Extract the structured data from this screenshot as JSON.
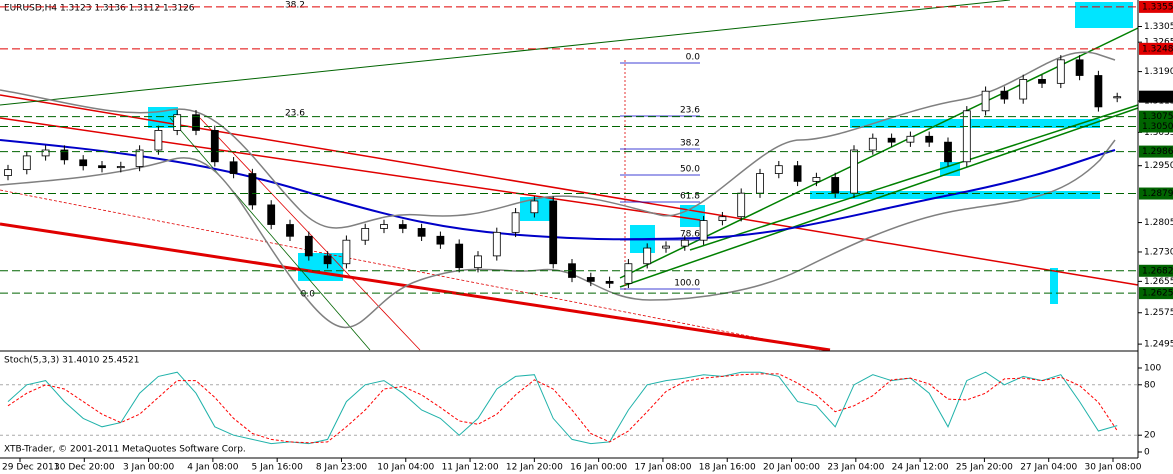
{
  "header": "EURUSD,H4  1.3123 1.3136 1.3112 1.3126",
  "footer": "XTB-Trader, © 2001-2011 MetaQuotes Software Corp.",
  "chart_data": [
    {
      "type": "candlestick",
      "open": [
        1.2925,
        1.294,
        1.2975,
        1.299,
        1.2965,
        1.295,
        1.2945,
        1.2948,
        1.299,
        1.304,
        1.308,
        1.304,
        1.296,
        1.293,
        1.285,
        1.28,
        1.277,
        1.272,
        1.27,
        1.276,
        1.279,
        1.28,
        1.279,
        1.277,
        1.275,
        1.269,
        1.272,
        1.278,
        1.283,
        1.286,
        1.27,
        1.2665,
        1.2655,
        1.265,
        1.27,
        1.274,
        1.2745,
        1.276,
        1.281,
        1.282,
        1.288,
        1.293,
        1.295,
        1.291,
        1.292,
        1.288,
        1.299,
        1.302,
        1.301,
        1.3025,
        1.301,
        1.296,
        1.309,
        1.314,
        1.312,
        1.317,
        1.316,
        1.322,
        1.318,
        1.3123
      ],
      "high": [
        1.2952,
        1.2987,
        1.3002,
        1.3002,
        1.2977,
        1.2962,
        1.296,
        1.3002,
        1.3052,
        1.3092,
        1.3092,
        1.3052,
        1.2972,
        1.2942,
        1.2862,
        1.2812,
        1.2782,
        1.2732,
        1.2772,
        1.2802,
        1.2812,
        1.2812,
        1.2802,
        1.2782,
        1.2762,
        1.2732,
        1.2792,
        1.2842,
        1.2872,
        1.2872,
        1.2712,
        1.2677,
        1.2667,
        1.2712,
        1.2752,
        1.2757,
        1.2772,
        1.2822,
        1.2832,
        1.2892,
        1.2942,
        1.2962,
        1.2962,
        1.2932,
        1.2932,
        1.3002,
        1.3032,
        1.3032,
        1.3037,
        1.3037,
        1.3022,
        1.3102,
        1.3152,
        1.3152,
        1.3182,
        1.3182,
        1.3232,
        1.3232,
        1.3192,
        1.3136
      ],
      "low": [
        1.2913,
        1.2928,
        1.2963,
        1.2953,
        1.2938,
        1.2933,
        1.2933,
        1.2936,
        1.2978,
        1.3028,
        1.3028,
        1.2948,
        1.2918,
        1.2838,
        1.2788,
        1.2758,
        1.2708,
        1.2688,
        1.2688,
        1.2748,
        1.2778,
        1.2778,
        1.2758,
        1.2738,
        1.2678,
        1.2678,
        1.2708,
        1.2768,
        1.2818,
        1.2688,
        1.2653,
        1.2643,
        1.2638,
        1.2638,
        1.2688,
        1.2728,
        1.2733,
        1.2748,
        1.2798,
        1.2808,
        1.2868,
        1.2918,
        1.2898,
        1.2898,
        1.2868,
        1.2868,
        1.2978,
        1.2998,
        1.2998,
        1.2998,
        1.2948,
        1.2948,
        1.3078,
        1.3108,
        1.3108,
        1.3148,
        1.3148,
        1.3168,
        1.3088,
        1.3112
      ],
      "close": [
        1.294,
        1.2975,
        1.299,
        1.2965,
        1.295,
        1.2945,
        1.2948,
        1.299,
        1.304,
        1.308,
        1.304,
        1.296,
        1.293,
        1.285,
        1.28,
        1.277,
        1.272,
        1.27,
        1.276,
        1.279,
        1.28,
        1.279,
        1.277,
        1.275,
        1.269,
        1.272,
        1.278,
        1.283,
        1.286,
        1.27,
        1.2665,
        1.2655,
        1.265,
        1.27,
        1.274,
        1.2745,
        1.276,
        1.281,
        1.282,
        1.288,
        1.293,
        1.295,
        1.291,
        1.292,
        1.288,
        1.299,
        1.302,
        1.301,
        1.3025,
        1.301,
        1.296,
        1.309,
        1.314,
        1.312,
        1.317,
        1.316,
        1.322,
        1.318,
        1.31,
        1.3126
      ],
      "ylim": [
        1.248,
        1.337
      ],
      "yticks": [
        1.3305,
        1.3265,
        {
          "value": 1.319,
          "label": "1.3190"
        },
        1.3115,
        1.3035,
        {
          "value": 1.295,
          "label": "1.2950"
        },
        1.2805,
        {
          "value": 1.273,
          "label": "1.2730"
        },
        1.2655,
        1.2575,
        1.2495
      ],
      "levels": [
        {
          "value": 1.3355,
          "label": "1.3355",
          "color": "#e00000",
          "line": "dashed"
        },
        {
          "value": 1.3248,
          "label": "1.3248",
          "color": "#e00000",
          "line": "dashed"
        },
        {
          "value": 1.3126,
          "label": "1.3126",
          "color": "#000000",
          "line": "none"
        },
        {
          "value": 1.3075,
          "label": "1.3075",
          "color": "#006400",
          "line": "dashed"
        },
        {
          "value": 1.305,
          "label": "1.3050",
          "color": "#006400",
          "line": "dashed"
        },
        {
          "value": 1.2986,
          "label": "1.2986",
          "color": "#006400",
          "line": "dashed"
        },
        {
          "value": 1.2879,
          "label": "1.2879",
          "color": "#006400",
          "line": "dashed"
        },
        {
          "value": 1.2682,
          "label": "1.2682",
          "color": "#006400",
          "line": "dashed"
        },
        {
          "value": 1.2625,
          "label": "1.2625",
          "color": "#006400",
          "line": "dashed"
        }
      ],
      "annotations": [
        "0.0",
        "23.6",
        "38.2",
        "50.0",
        "61.8",
        "78.6",
        "100.0",
        "38.2",
        "23.6",
        "0.0"
      ],
      "dates": [
        "29 Dec 2011",
        "30 Dec 20:00",
        "3 Jan 00:00",
        "4 Jan 08:00",
        "5 Jan 16:00",
        "8 Jan 23:00",
        "10 Jan 04:00",
        "11 Jan 12:00",
        "12 Jan 20:00",
        "16 Jan 00:00",
        "17 Jan 08:00",
        "18 Jan 16:00",
        "20 Jan 00:00",
        "23 Jan 04:00",
        "24 Jan 12:00",
        "25 Jan 20:00",
        "27 Jan 04:00",
        "30 Jan 08:00"
      ]
    },
    {
      "type": "line",
      "title": "Stoch(5,3,3) 31.4010 25.4521",
      "ylim": [
        0,
        100
      ],
      "yticks": [
        100,
        80,
        20,
        0
      ],
      "series": [
        {
          "color": "#20b2aa",
          "line": "solid",
          "values": [
            60,
            80,
            85,
            60,
            40,
            30,
            35,
            70,
            90,
            95,
            70,
            30,
            20,
            15,
            10,
            12,
            10,
            15,
            60,
            80,
            85,
            70,
            50,
            40,
            20,
            40,
            75,
            90,
            92,
            40,
            15,
            10,
            12,
            50,
            80,
            85,
            88,
            92,
            90,
            95,
            95,
            90,
            60,
            55,
            30,
            80,
            92,
            85,
            88,
            70,
            30,
            85,
            95,
            80,
            90,
            85,
            92,
            60,
            25,
            31.401
          ]
        },
        {
          "color": "#ff0000",
          "line": "dashed",
          "values": [
            55,
            70,
            80,
            75,
            60,
            45,
            35,
            45,
            65,
            85,
            85,
            65,
            40,
            22,
            15,
            12,
            11,
            12,
            30,
            50,
            75,
            78,
            68,
            53,
            37,
            33,
            45,
            68,
            86,
            75,
            50,
            22,
            12,
            25,
            48,
            72,
            84,
            88,
            90,
            92,
            93,
            93,
            82,
            68,
            48,
            55,
            67,
            86,
            88,
            81,
            63,
            62,
            70,
            87,
            88,
            85,
            89,
            79,
            59,
            25.4521
          ]
        }
      ]
    }
  ]
}
